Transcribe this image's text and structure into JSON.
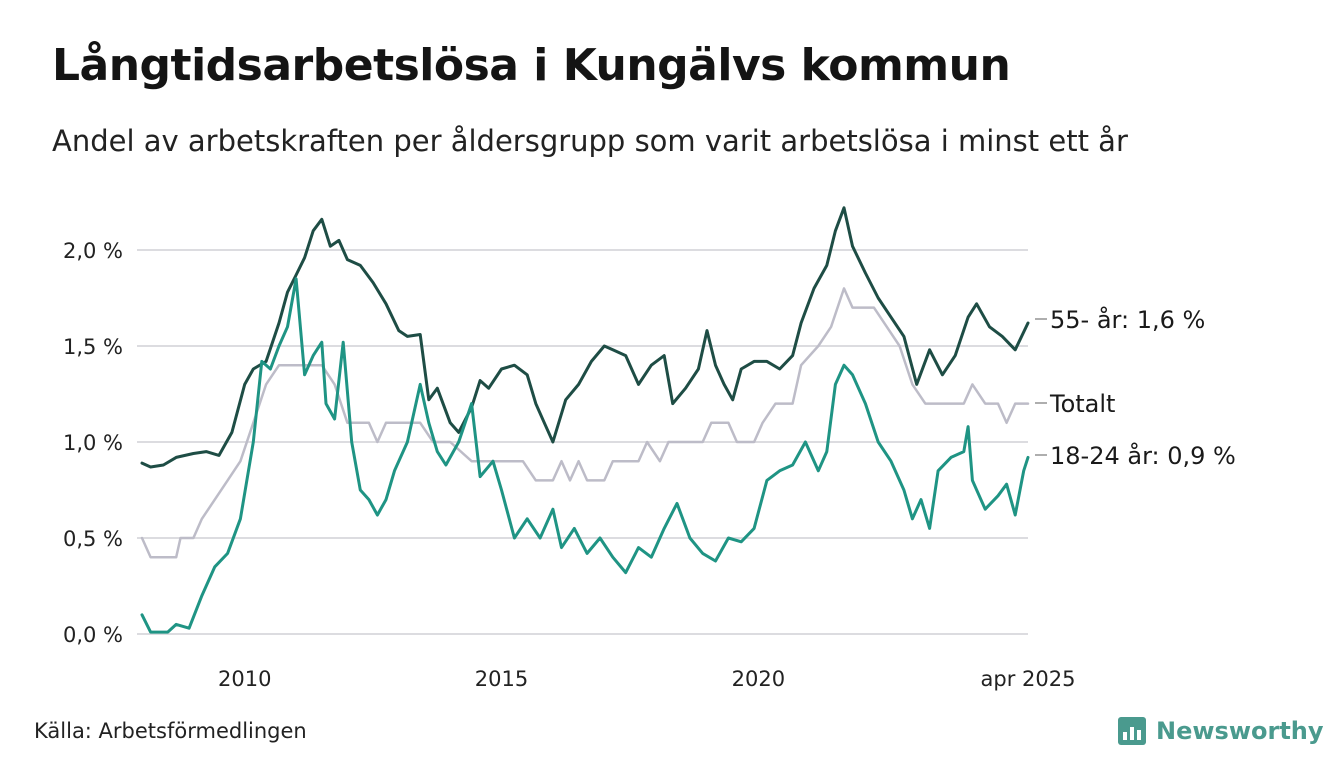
{
  "title": "Långtidsarbetslösa i Kungälvs kommun",
  "subtitle": "Andel av arbetskraften per åldersgrupp som varit arbetslösa i minst ett år",
  "source": "Källa: Arbetsförmedlingen",
  "brand": "Newsworthy",
  "chart_data": {
    "type": "line",
    "title": "Långtidsarbetslösa i Kungälvs kommun",
    "subtitle": "Andel av arbetskraften per åldersgrupp som varit arbetslösa i minst ett år",
    "xlabel": "",
    "ylabel": "",
    "x_start": "2008-01",
    "x_end": "2025-04",
    "x_ticks": [
      {
        "date": "2010-01",
        "label": "2010"
      },
      {
        "date": "2015-01",
        "label": "2015"
      },
      {
        "date": "2020-01",
        "label": "2020"
      },
      {
        "date": "2025-04",
        "label": "apr 2025"
      }
    ],
    "y_ticks": [
      {
        "value": 0.0,
        "label": "0,0 %"
      },
      {
        "value": 0.5,
        "label": "0,5 %"
      },
      {
        "value": 1.0,
        "label": "1,0 %"
      },
      {
        "value": 1.5,
        "label": "1,5 %"
      },
      {
        "value": 2.0,
        "label": "2,0 %"
      }
    ],
    "ylim": [
      0,
      2.2
    ],
    "grid": true,
    "legend": "end-of-line labels",
    "series": [
      {
        "name": "Totalt",
        "end_label": "Totalt",
        "color": "#bdbcc8",
        "points": [
          [
            "2008-01",
            0.5
          ],
          [
            "2008-03",
            0.4
          ],
          [
            "2008-09",
            0.4
          ],
          [
            "2008-10",
            0.5
          ],
          [
            "2009-01",
            0.5
          ],
          [
            "2009-03",
            0.6
          ],
          [
            "2009-06",
            0.7
          ],
          [
            "2009-09",
            0.8
          ],
          [
            "2009-12",
            0.9
          ],
          [
            "2010-03",
            1.1
          ],
          [
            "2010-06",
            1.3
          ],
          [
            "2010-09",
            1.4
          ],
          [
            "2011-01",
            1.4
          ],
          [
            "2011-04",
            1.4
          ],
          [
            "2011-07",
            1.4
          ],
          [
            "2011-10",
            1.3
          ],
          [
            "2012-01",
            1.1
          ],
          [
            "2012-06",
            1.1
          ],
          [
            "2012-08",
            1.0
          ],
          [
            "2012-10",
            1.1
          ],
          [
            "2013-06",
            1.1
          ],
          [
            "2013-09",
            1.0
          ],
          [
            "2014-01",
            1.0
          ],
          [
            "2014-06",
            0.9
          ],
          [
            "2015-06",
            0.9
          ],
          [
            "2015-09",
            0.8
          ],
          [
            "2016-01",
            0.8
          ],
          [
            "2016-03",
            0.9
          ],
          [
            "2016-05",
            0.8
          ],
          [
            "2016-07",
            0.9
          ],
          [
            "2016-09",
            0.8
          ],
          [
            "2017-01",
            0.8
          ],
          [
            "2017-03",
            0.9
          ],
          [
            "2017-09",
            0.9
          ],
          [
            "2017-11",
            1.0
          ],
          [
            "2018-02",
            0.9
          ],
          [
            "2018-04",
            1.0
          ],
          [
            "2018-12",
            1.0
          ],
          [
            "2019-02",
            1.1
          ],
          [
            "2019-06",
            1.1
          ],
          [
            "2019-08",
            1.0
          ],
          [
            "2019-12",
            1.0
          ],
          [
            "2020-02",
            1.1
          ],
          [
            "2020-05",
            1.2
          ],
          [
            "2020-09",
            1.2
          ],
          [
            "2020-11",
            1.4
          ],
          [
            "2021-03",
            1.5
          ],
          [
            "2021-06",
            1.6
          ],
          [
            "2021-09",
            1.8
          ],
          [
            "2021-11",
            1.7
          ],
          [
            "2022-01",
            1.7
          ],
          [
            "2022-04",
            1.7
          ],
          [
            "2022-07",
            1.6
          ],
          [
            "2022-10",
            1.5
          ],
          [
            "2023-01",
            1.3
          ],
          [
            "2023-04",
            1.2
          ],
          [
            "2023-07",
            1.2
          ],
          [
            "2023-10",
            1.2
          ],
          [
            "2024-01",
            1.2
          ],
          [
            "2024-03",
            1.3
          ],
          [
            "2024-06",
            1.2
          ],
          [
            "2024-09",
            1.2
          ],
          [
            "2024-11",
            1.1
          ],
          [
            "2025-01",
            1.2
          ],
          [
            "2025-04",
            1.2
          ]
        ]
      },
      {
        "name": "55- år",
        "end_label": "55- år: 1,6 %",
        "color": "#1e4d45",
        "points": [
          [
            "2008-01",
            0.89
          ],
          [
            "2008-03",
            0.87
          ],
          [
            "2008-06",
            0.88
          ],
          [
            "2008-09",
            0.92
          ],
          [
            "2009-01",
            0.94
          ],
          [
            "2009-04",
            0.95
          ],
          [
            "2009-07",
            0.93
          ],
          [
            "2009-10",
            1.05
          ],
          [
            "2010-01",
            1.3
          ],
          [
            "2010-03",
            1.38
          ],
          [
            "2010-06",
            1.42
          ],
          [
            "2010-09",
            1.62
          ],
          [
            "2010-11",
            1.78
          ],
          [
            "2011-01",
            1.87
          ],
          [
            "2011-03",
            1.96
          ],
          [
            "2011-05",
            2.1
          ],
          [
            "2011-07",
            2.16
          ],
          [
            "2011-09",
            2.02
          ],
          [
            "2011-11",
            2.05
          ],
          [
            "2012-01",
            1.95
          ],
          [
            "2012-04",
            1.92
          ],
          [
            "2012-07",
            1.83
          ],
          [
            "2012-10",
            1.72
          ],
          [
            "2013-01",
            1.58
          ],
          [
            "2013-03",
            1.55
          ],
          [
            "2013-06",
            1.56
          ],
          [
            "2013-08",
            1.22
          ],
          [
            "2013-10",
            1.28
          ],
          [
            "2014-01",
            1.1
          ],
          [
            "2014-03",
            1.05
          ],
          [
            "2014-06",
            1.18
          ],
          [
            "2014-08",
            1.32
          ],
          [
            "2014-10",
            1.28
          ],
          [
            "2015-01",
            1.38
          ],
          [
            "2015-04",
            1.4
          ],
          [
            "2015-07",
            1.35
          ],
          [
            "2015-09",
            1.2
          ],
          [
            "2015-11",
            1.1
          ],
          [
            "2016-01",
            1.0
          ],
          [
            "2016-04",
            1.22
          ],
          [
            "2016-07",
            1.3
          ],
          [
            "2016-10",
            1.42
          ],
          [
            "2017-01",
            1.5
          ],
          [
            "2017-03",
            1.48
          ],
          [
            "2017-06",
            1.45
          ],
          [
            "2017-09",
            1.3
          ],
          [
            "2017-12",
            1.4
          ],
          [
            "2018-03",
            1.45
          ],
          [
            "2018-05",
            1.2
          ],
          [
            "2018-08",
            1.28
          ],
          [
            "2018-11",
            1.38
          ],
          [
            "2019-01",
            1.58
          ],
          [
            "2019-03",
            1.4
          ],
          [
            "2019-05",
            1.3
          ],
          [
            "2019-07",
            1.22
          ],
          [
            "2019-09",
            1.38
          ],
          [
            "2019-12",
            1.42
          ],
          [
            "2020-03",
            1.42
          ],
          [
            "2020-06",
            1.38
          ],
          [
            "2020-09",
            1.45
          ],
          [
            "2020-11",
            1.62
          ],
          [
            "2021-02",
            1.8
          ],
          [
            "2021-05",
            1.92
          ],
          [
            "2021-07",
            2.1
          ],
          [
            "2021-09",
            2.22
          ],
          [
            "2021-11",
            2.02
          ],
          [
            "2022-02",
            1.88
          ],
          [
            "2022-05",
            1.75
          ],
          [
            "2022-08",
            1.65
          ],
          [
            "2022-11",
            1.55
          ],
          [
            "2023-02",
            1.3
          ],
          [
            "2023-05",
            1.48
          ],
          [
            "2023-08",
            1.35
          ],
          [
            "2023-11",
            1.45
          ],
          [
            "2024-02",
            1.65
          ],
          [
            "2024-04",
            1.72
          ],
          [
            "2024-07",
            1.6
          ],
          [
            "2024-10",
            1.55
          ],
          [
            "2025-01",
            1.48
          ],
          [
            "2025-04",
            1.62
          ]
        ]
      },
      {
        "name": "18-24 år",
        "end_label": "18-24 år: 0,9 %",
        "color": "#1f9484",
        "points": [
          [
            "2008-01",
            0.1
          ],
          [
            "2008-03",
            0.01
          ],
          [
            "2008-07",
            0.01
          ],
          [
            "2008-09",
            0.05
          ],
          [
            "2008-12",
            0.03
          ],
          [
            "2009-03",
            0.2
          ],
          [
            "2009-06",
            0.35
          ],
          [
            "2009-09",
            0.42
          ],
          [
            "2009-12",
            0.6
          ],
          [
            "2010-03",
            1.0
          ],
          [
            "2010-05",
            1.42
          ],
          [
            "2010-07",
            1.38
          ],
          [
            "2010-09",
            1.5
          ],
          [
            "2010-11",
            1.6
          ],
          [
            "2011-01",
            1.85
          ],
          [
            "2011-03",
            1.35
          ],
          [
            "2011-05",
            1.45
          ],
          [
            "2011-07",
            1.52
          ],
          [
            "2011-08",
            1.2
          ],
          [
            "2011-10",
            1.12
          ],
          [
            "2011-12",
            1.52
          ],
          [
            "2012-02",
            1.0
          ],
          [
            "2012-04",
            0.75
          ],
          [
            "2012-06",
            0.7
          ],
          [
            "2012-08",
            0.62
          ],
          [
            "2012-10",
            0.7
          ],
          [
            "2012-12",
            0.85
          ],
          [
            "2013-03",
            1.0
          ],
          [
            "2013-06",
            1.3
          ],
          [
            "2013-08",
            1.1
          ],
          [
            "2013-10",
            0.95
          ],
          [
            "2013-12",
            0.88
          ],
          [
            "2014-03",
            1.0
          ],
          [
            "2014-06",
            1.2
          ],
          [
            "2014-08",
            0.82
          ],
          [
            "2014-11",
            0.9
          ],
          [
            "2015-01",
            0.75
          ],
          [
            "2015-04",
            0.5
          ],
          [
            "2015-07",
            0.6
          ],
          [
            "2015-10",
            0.5
          ],
          [
            "2016-01",
            0.65
          ],
          [
            "2016-03",
            0.45
          ],
          [
            "2016-06",
            0.55
          ],
          [
            "2016-09",
            0.42
          ],
          [
            "2016-12",
            0.5
          ],
          [
            "2017-03",
            0.4
          ],
          [
            "2017-06",
            0.32
          ],
          [
            "2017-09",
            0.45
          ],
          [
            "2017-12",
            0.4
          ],
          [
            "2018-03",
            0.55
          ],
          [
            "2018-06",
            0.68
          ],
          [
            "2018-09",
            0.5
          ],
          [
            "2018-12",
            0.42
          ],
          [
            "2019-03",
            0.38
          ],
          [
            "2019-06",
            0.5
          ],
          [
            "2019-09",
            0.48
          ],
          [
            "2019-12",
            0.55
          ],
          [
            "2020-03",
            0.8
          ],
          [
            "2020-06",
            0.85
          ],
          [
            "2020-09",
            0.88
          ],
          [
            "2020-12",
            1.0
          ],
          [
            "2021-03",
            0.85
          ],
          [
            "2021-05",
            0.95
          ],
          [
            "2021-07",
            1.3
          ],
          [
            "2021-09",
            1.4
          ],
          [
            "2021-11",
            1.35
          ],
          [
            "2022-02",
            1.2
          ],
          [
            "2022-05",
            1.0
          ],
          [
            "2022-08",
            0.9
          ],
          [
            "2022-11",
            0.75
          ],
          [
            "2023-01",
            0.6
          ],
          [
            "2023-03",
            0.7
          ],
          [
            "2023-05",
            0.55
          ],
          [
            "2023-07",
            0.85
          ],
          [
            "2023-10",
            0.92
          ],
          [
            "2024-01",
            0.95
          ],
          [
            "2024-02",
            1.08
          ],
          [
            "2024-03",
            0.8
          ],
          [
            "2024-06",
            0.65
          ],
          [
            "2024-09",
            0.72
          ],
          [
            "2024-11",
            0.78
          ],
          [
            "2025-01",
            0.62
          ],
          [
            "2025-03",
            0.85
          ],
          [
            "2025-04",
            0.92
          ]
        ]
      }
    ]
  }
}
